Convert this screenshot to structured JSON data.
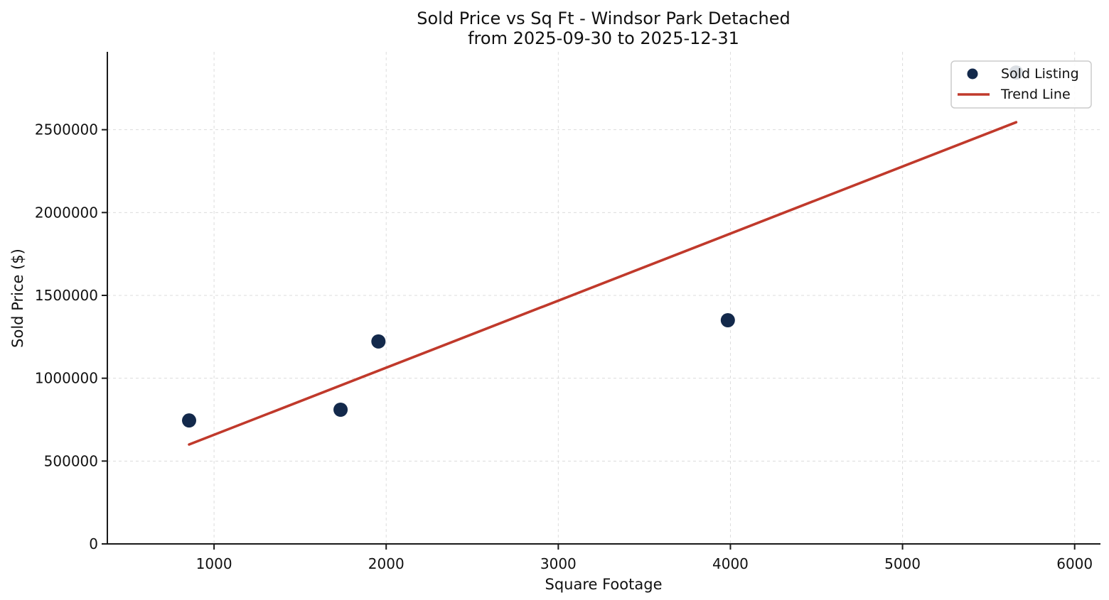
{
  "chart_data": {
    "type": "scatter",
    "title": "Sold Price vs Sq Ft - Windsor Park Detached",
    "subtitle": "from 2025-09-30 to 2025-12-31",
    "xlabel": "Square Footage",
    "ylabel": "Sold Price ($)",
    "xlim": [
      380,
      6150
    ],
    "ylim": [
      0,
      2970000
    ],
    "x_ticks": [
      1000,
      2000,
      3000,
      4000,
      5000,
      6000
    ],
    "y_ticks": [
      0,
      500000,
      1000000,
      1500000,
      2000000,
      2500000
    ],
    "grid": true,
    "grid_style": "dashed",
    "legend_position": "top-right",
    "series": [
      {
        "name": "Sold Listing",
        "type": "scatter",
        "color": "#13294b",
        "points": [
          {
            "sqft": 855,
            "price": 745000
          },
          {
            "sqft": 1735,
            "price": 810000
          },
          {
            "sqft": 1955,
            "price": 1222000
          },
          {
            "sqft": 3985,
            "price": 1350000
          },
          {
            "sqft": 5660,
            "price": 2845000
          }
        ]
      },
      {
        "name": "Trend Line",
        "type": "line",
        "color": "#c0392b",
        "points": [
          {
            "sqft": 855,
            "price": 600000
          },
          {
            "sqft": 5660,
            "price": 2545000
          }
        ]
      }
    ],
    "colors": {
      "point": "#13294b",
      "trend": "#c0392b",
      "grid": "#dcdcdc",
      "axis": "#1a1a1a",
      "text": "#111111",
      "legend_border": "#cccccc",
      "background": "#ffffff"
    }
  }
}
